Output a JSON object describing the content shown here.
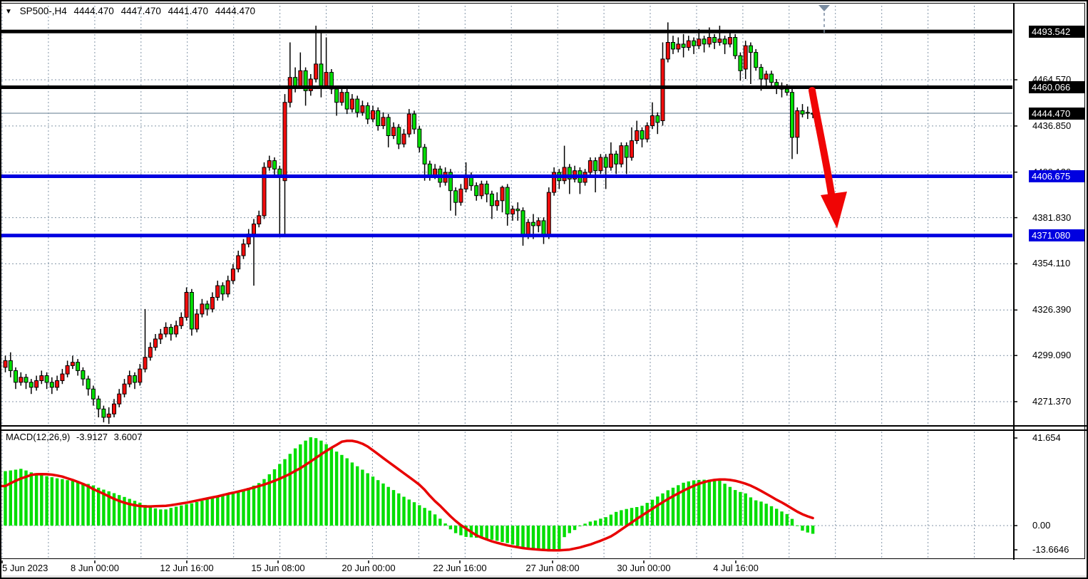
{
  "window": {
    "symbol_period": "SP500-,H4",
    "open": "4444.470",
    "high": "4447.470",
    "low": "4441.470",
    "close": "4444.470"
  },
  "macd_panel": {
    "label": "MACD(12,26,9)",
    "macd_value": "-3.9127",
    "signal_value": "3.6007",
    "axis_ticks": [
      {
        "text": "41.654",
        "value": 41.654
      },
      {
        "text": "0.00",
        "value": 0
      },
      {
        "text": "-13.6646",
        "value": -13.6646
      }
    ]
  },
  "colors": {
    "bull_candle": "#f20c0c",
    "bear_candle": "#00de00",
    "macd_histogram": "#00de00",
    "macd_signal": "#e80000",
    "support_line": "#0000e0",
    "resistance_line": "#000000",
    "grid": "#8496a8",
    "arrow": "#f00505"
  },
  "chart_data": {
    "type": "candlestick",
    "symbol": "SP500-",
    "timeframe": "H4",
    "grid": true,
    "current_price": 4444.47,
    "current_price_label": "4444.470",
    "price_axis_ticks": [
      4464.57,
      4436.85,
      4409.12,
      4381.83,
      4354.11,
      4326.39,
      4299.09,
      4271.37
    ],
    "horizontal_lines": [
      {
        "label": "4493.542",
        "price": 4493.542,
        "style": "black",
        "name": "resistance-line-4493"
      },
      {
        "label": "4460.066",
        "price": 4460.066,
        "style": "black",
        "name": "resistance-line-4460"
      },
      {
        "label": "4406.675",
        "price": 4406.675,
        "style": "blue",
        "name": "support-line-4406"
      },
      {
        "label": "4371.080",
        "price": 4371.08,
        "style": "blue",
        "name": "support-line-4371"
      }
    ],
    "time_labels": [
      {
        "text": "5 Jun 2023",
        "x": 3
      },
      {
        "text": "8 Jun 00:00",
        "x": 133
      },
      {
        "text": "12 Jun 16:00",
        "x": 262
      },
      {
        "text": "15 Jun 08:00",
        "x": 390
      },
      {
        "text": "20 Jun 00:00",
        "x": 517
      },
      {
        "text": "22 Jun 16:00",
        "x": 645
      },
      {
        "text": "27 Jun 08:00",
        "x": 775
      },
      {
        "text": "30 Jun 00:00",
        "x": 903
      },
      {
        "text": "4 Jul 16:00",
        "x": 1032
      }
    ],
    "annotations": [
      {
        "type": "arrow-down",
        "from_price": 4456,
        "to_price": 4378,
        "meaning": "projected decline"
      }
    ],
    "candles": [
      [
        4292,
        4299,
        4289,
        4296
      ],
      [
        4296,
        4301,
        4286,
        4290
      ],
      [
        4290,
        4292,
        4279,
        4283
      ],
      [
        4283,
        4289,
        4281,
        4286
      ],
      [
        4286,
        4288,
        4279,
        4283
      ],
      [
        4283,
        4285,
        4276,
        4280
      ],
      [
        4280,
        4287,
        4278,
        4284
      ],
      [
        4284,
        4290,
        4282,
        4287
      ],
      [
        4287,
        4289,
        4279,
        4283
      ],
      [
        4283,
        4286,
        4276,
        4280
      ],
      [
        4280,
        4287,
        4278,
        4284
      ],
      [
        4284,
        4291,
        4282,
        4288
      ],
      [
        4288,
        4296,
        4286,
        4293
      ],
      [
        4293,
        4299,
        4291,
        4295
      ],
      [
        4295,
        4297,
        4287,
        4290
      ],
      [
        4290,
        4292,
        4281,
        4285
      ],
      [
        4285,
        4287,
        4275,
        4279
      ],
      [
        4279,
        4281,
        4269,
        4273
      ],
      [
        4273,
        4275,
        4262,
        4267
      ],
      [
        4267,
        4269,
        4259,
        4262
      ],
      [
        4262,
        4268,
        4258,
        4264
      ],
      [
        4264,
        4273,
        4262,
        4270
      ],
      [
        4270,
        4279,
        4268,
        4276
      ],
      [
        4276,
        4285,
        4274,
        4282
      ],
      [
        4282,
        4290,
        4280,
        4287
      ],
      [
        4287,
        4289,
        4279,
        4283
      ],
      [
        4283,
        4294,
        4281,
        4291
      ],
      [
        4291,
        4327,
        4289,
        4298
      ],
      [
        4298,
        4307,
        4296,
        4304
      ],
      [
        4304,
        4312,
        4302,
        4309
      ],
      [
        4309,
        4315,
        4306,
        4312
      ],
      [
        4312,
        4319,
        4310,
        4316
      ],
      [
        4316,
        4318,
        4308,
        4312
      ],
      [
        4312,
        4320,
        4310,
        4317
      ],
      [
        4317,
        4325,
        4315,
        4322
      ],
      [
        4322,
        4340,
        4320,
        4337
      ],
      [
        4337,
        4339,
        4311,
        4315
      ],
      [
        4315,
        4327,
        4313,
        4324
      ],
      [
        4324,
        4333,
        4322,
        4330
      ],
      [
        4330,
        4332,
        4323,
        4327
      ],
      [
        4327,
        4337,
        4325,
        4334
      ],
      [
        4334,
        4344,
        4332,
        4341
      ],
      [
        4341,
        4343,
        4332,
        4336
      ],
      [
        4336,
        4347,
        4334,
        4344
      ],
      [
        4344,
        4354,
        4342,
        4351
      ],
      [
        4351,
        4362,
        4349,
        4359
      ],
      [
        4359,
        4369,
        4357,
        4366
      ],
      [
        4366,
        4375,
        4364,
        4372
      ],
      [
        4372,
        4381,
        4341,
        4378
      ],
      [
        4378,
        4386,
        4376,
        4383
      ],
      [
        4383,
        4415,
        4381,
        4412
      ],
      [
        4412,
        4419,
        4410,
        4416
      ],
      [
        4416,
        4418,
        4407,
        4411
      ],
      [
        4411,
        4413,
        4371,
        4407
      ],
      [
        4404,
        4456,
        4372,
        4451
      ],
      [
        4451,
        4487,
        4448,
        4466
      ],
      [
        4466,
        4472,
        4457,
        4461
      ],
      [
        4461,
        4481,
        4459,
        4470
      ],
      [
        4470,
        4472,
        4449,
        4458
      ],
      [
        4458,
        4468,
        4455,
        4465
      ],
      [
        4465,
        4497,
        4463,
        4474
      ],
      [
        4474,
        4493,
        4454,
        4461
      ],
      [
        4461,
        4490,
        4459,
        4469
      ],
      [
        4469,
        4471,
        4456,
        4459
      ],
      [
        4459,
        4461,
        4443,
        4451
      ],
      [
        4451,
        4460,
        4449,
        4457
      ],
      [
        4457,
        4459,
        4444,
        4447
      ],
      [
        4447,
        4456,
        4445,
        4453
      ],
      [
        4453,
        4455,
        4442,
        4445
      ],
      [
        4445,
        4452,
        4443,
        4449
      ],
      [
        4449,
        4451,
        4438,
        4441
      ],
      [
        4441,
        4449,
        4439,
        4446
      ],
      [
        4446,
        4448,
        4434,
        4437
      ],
      [
        4437,
        4445,
        4435,
        4442
      ],
      [
        4442,
        4444,
        4424,
        4431
      ],
      [
        4431,
        4439,
        4429,
        4436
      ],
      [
        4436,
        4438,
        4423,
        4426
      ],
      [
        4426,
        4435,
        4424,
        4432
      ],
      [
        4432,
        4447,
        4430,
        4444
      ],
      [
        4444,
        4446,
        4432,
        4435
      ],
      [
        4435,
        4437,
        4421,
        4424
      ],
      [
        4424,
        4426,
        4404,
        4414
      ],
      [
        4414,
        4416,
        4404,
        4407
      ],
      [
        4407,
        4414,
        4405,
        4411
      ],
      [
        4411,
        4413,
        4400,
        4403
      ],
      [
        4403,
        4412,
        4401,
        4409
      ],
      [
        4409,
        4411,
        4386,
        4398
      ],
      [
        4398,
        4400,
        4383,
        4391
      ],
      [
        4391,
        4402,
        4389,
        4399
      ],
      [
        4399,
        4415,
        4397,
        4407
      ],
      [
        4407,
        4409,
        4398,
        4401
      ],
      [
        4401,
        4403,
        4392,
        4395
      ],
      [
        4395,
        4404,
        4393,
        4402
      ],
      [
        4402,
        4404,
        4391,
        4396
      ],
      [
        4396,
        4398,
        4381,
        4389
      ],
      [
        4389,
        4397,
        4386,
        4392
      ],
      [
        4392,
        4401,
        4385,
        4400
      ],
      [
        4400,
        4402,
        4377,
        4384
      ],
      [
        4384,
        4389,
        4380,
        4387
      ],
      [
        4387,
        4391,
        4380,
        4386
      ],
      [
        4386,
        4388,
        4365,
        4371
      ],
      [
        4371,
        4381,
        4369,
        4379
      ],
      [
        4379,
        4384,
        4369,
        4377
      ],
      [
        4377,
        4382,
        4373,
        4380
      ],
      [
        4380,
        4382,
        4366,
        4371
      ],
      [
        4371,
        4400,
        4369,
        4397
      ],
      [
        4397,
        4412,
        4395,
        4409
      ],
      [
        4409,
        4411,
        4399,
        4404
      ],
      [
        4404,
        4425,
        4402,
        4412
      ],
      [
        4412,
        4414,
        4396,
        4405
      ],
      [
        4405,
        4413,
        4403,
        4410
      ],
      [
        4410,
        4412,
        4396,
        4403
      ],
      [
        4403,
        4411,
        4401,
        4409
      ],
      [
        4409,
        4418,
        4407,
        4416
      ],
      [
        4416,
        4418,
        4397,
        4410
      ],
      [
        4410,
        4420,
        4408,
        4418
      ],
      [
        4418,
        4420,
        4399,
        4412
      ],
      [
        4412,
        4427,
        4410,
        4420
      ],
      [
        4420,
        4422,
        4408,
        4414
      ],
      [
        4414,
        4427,
        4412,
        4425
      ],
      [
        4425,
        4427,
        4408,
        4418
      ],
      [
        4418,
        4436,
        4416,
        4428
      ],
      [
        4428,
        4440,
        4426,
        4434
      ],
      [
        4434,
        4436,
        4424,
        4429
      ],
      [
        4429,
        4439,
        4427,
        4437
      ],
      [
        4437,
        4451,
        4435,
        4443
      ],
      [
        4443,
        4445,
        4432,
        4439
      ],
      [
        4440,
        4487,
        4437,
        4477
      ],
      [
        4477,
        4499,
        4475,
        4487
      ],
      [
        4487,
        4491,
        4480,
        4483
      ],
      [
        4483,
        4490,
        4481,
        4486
      ],
      [
        4486,
        4492,
        4478,
        4484
      ],
      [
        4484,
        4491,
        4482,
        4488
      ],
      [
        4488,
        4490,
        4480,
        4485
      ],
      [
        4485,
        4495,
        4483,
        4489
      ],
      [
        4489,
        4491,
        4481,
        4486
      ],
      [
        4486,
        4496,
        4484,
        4490
      ],
      [
        4490,
        4492,
        4483,
        4487
      ],
      [
        4487,
        4497,
        4485,
        4489
      ],
      [
        4489,
        4491,
        4480,
        4486
      ],
      [
        4486,
        4494,
        4484,
        4490
      ],
      [
        4490,
        4492,
        4477,
        4479
      ],
      [
        4479,
        4481,
        4464,
        4470
      ],
      [
        4471,
        4488,
        4465,
        4485
      ],
      [
        4485,
        4487,
        4462,
        4481
      ],
      [
        4481,
        4483,
        4470,
        4472
      ],
      [
        4472,
        4474,
        4458,
        4465
      ],
      [
        4465,
        4470,
        4461,
        4468
      ],
      [
        4468,
        4470,
        4459,
        4463
      ],
      [
        4463,
        4465,
        4456,
        4461
      ],
      [
        4461,
        4463,
        4454,
        4459
      ],
      [
        4459,
        4462,
        4455,
        4457
      ],
      [
        4457,
        4459,
        4417,
        4430
      ],
      [
        4430,
        4448,
        4420,
        4446
      ],
      [
        4446,
        4450,
        4442,
        4444
      ],
      [
        4445,
        4448.5,
        4441,
        4444.5
      ],
      [
        4444.47,
        4447.47,
        4441.47,
        4444.47
      ]
    ],
    "macd": {
      "params": [
        12,
        26,
        9
      ],
      "ylim": [
        -13.6646,
        41.654
      ],
      "histogram": [
        25.9,
        26.2,
        26.6,
        27,
        26.2,
        25.3,
        24.4,
        24,
        23.5,
        23,
        22.5,
        22.1,
        21.6,
        21.2,
        20.7,
        20.2,
        19.8,
        19.1,
        18,
        17.1,
        16.3,
        15.4,
        14.5,
        13.6,
        12.7,
        11.8,
        10.9,
        9.8,
        8.9,
        8.2,
        7.7,
        7.7,
        8.4,
        9,
        9.6,
        10.1,
        10.6,
        11.2,
        11.8,
        12.6,
        13.3,
        14,
        14.6,
        15.2,
        15.8,
        16.5,
        17.2,
        17.9,
        19,
        20.2,
        22.1,
        24.4,
        26.8,
        29.3,
        31.6,
        34.1,
        36.7,
        38.6,
        40.4,
        42,
        41.6,
        40.4,
        38.7,
        36.9,
        35.2,
        33.6,
        32,
        30,
        28.2,
        26.6,
        24.9,
        23.3,
        21.6,
        20,
        18.4,
        16.9,
        15.3,
        13.7,
        12.4,
        11.1,
        9.7,
        8.4,
        7.1,
        5.3,
        3.3,
        1,
        -1.8,
        -3.6,
        -4.6,
        -5.4,
        -5.6,
        -5.8,
        -6.1,
        -6.4,
        -6.7,
        -7.2,
        -7.8,
        -8.3,
        -9,
        -9.7,
        -10.3,
        -10.7,
        -11.1,
        -11.5,
        -12,
        -12.3,
        -12,
        -11.3,
        -5.5,
        -3.6,
        -2.1,
        -0.2,
        0.9,
        1.9,
        2.4,
        3.3,
        4,
        5.2,
        6.5,
        7.3,
        7.9,
        8.4,
        8.8,
        9.4,
        10.8,
        12.3,
        13.8,
        15.3,
        16.8,
        18,
        19.2,
        20.4,
        21,
        21.5,
        21.7,
        21.8,
        21.8,
        21.8,
        21.3,
        19.9,
        18.4,
        16.9,
        16,
        15.3,
        13.4,
        12,
        11.4,
        10.4,
        9.2,
        8,
        6.7,
        5.5,
        3.2,
        0.1,
        -2.4,
        -3.3,
        -3.9
      ],
      "signal": [
        18.8,
        20.1,
        21.3,
        22.4,
        23.2,
        24.1,
        24.4,
        24.5,
        24.4,
        24.2,
        23.8,
        23.3,
        22.5,
        21.7,
        20.8,
        19.8,
        18.7,
        17.3,
        16.2,
        15.1,
        13.9,
        12.7,
        11.7,
        10.9,
        10.2,
        9.7,
        9.3,
        9.1,
        9.1,
        9.2,
        9.3,
        9.4,
        9.7,
        10.1,
        10.5,
        10.9,
        11.4,
        11.9,
        12.4,
        12.9,
        13.4,
        13.9,
        14.5,
        15.1,
        15.6,
        16.2,
        16.8,
        17.4,
        18.1,
        18.8,
        19.5,
        20.4,
        21.3,
        22.3,
        23.4,
        24.6,
        26,
        27.3,
        28.9,
        30.5,
        32.2,
        33.9,
        35.5,
        37,
        38.4,
        39.9,
        40.3,
        40.3,
        39.8,
        38.9,
        37.6,
        35.8,
        34,
        32.1,
        30.3,
        28.5,
        26.7,
        24.9,
        23.1,
        21.3,
        19.4,
        17,
        14.2,
        11.6,
        9.4,
        6.9,
        4.4,
        2.2,
        0.2,
        -1.4,
        -3,
        -4.6,
        -5.7,
        -6.6,
        -7.5,
        -8.2,
        -8.8,
        -9.4,
        -9.9,
        -10.3,
        -10.7,
        -11,
        -11.2,
        -11.4,
        -11.6,
        -11.7,
        -11.8,
        -11.8,
        -11.6,
        -11.4,
        -10.9,
        -10.4,
        -9.7,
        -9,
        -8.1,
        -7.2,
        -6.2,
        -5.1,
        -3.6,
        -1.9,
        -0.2,
        1.5,
        3.2,
        4.8,
        6.4,
        8,
        9.6,
        11.1,
        12.6,
        14,
        15.3,
        16.6,
        17.8,
        18.9,
        19.9,
        20.7,
        21.3,
        21.7,
        21.9,
        21.9,
        21.7,
        21.3,
        20.7,
        19.9,
        19,
        17.8,
        16.5,
        15.1,
        13.7,
        12.3,
        11,
        9.6,
        8.1,
        6.6,
        5.4,
        4.4,
        3.6
      ]
    }
  }
}
